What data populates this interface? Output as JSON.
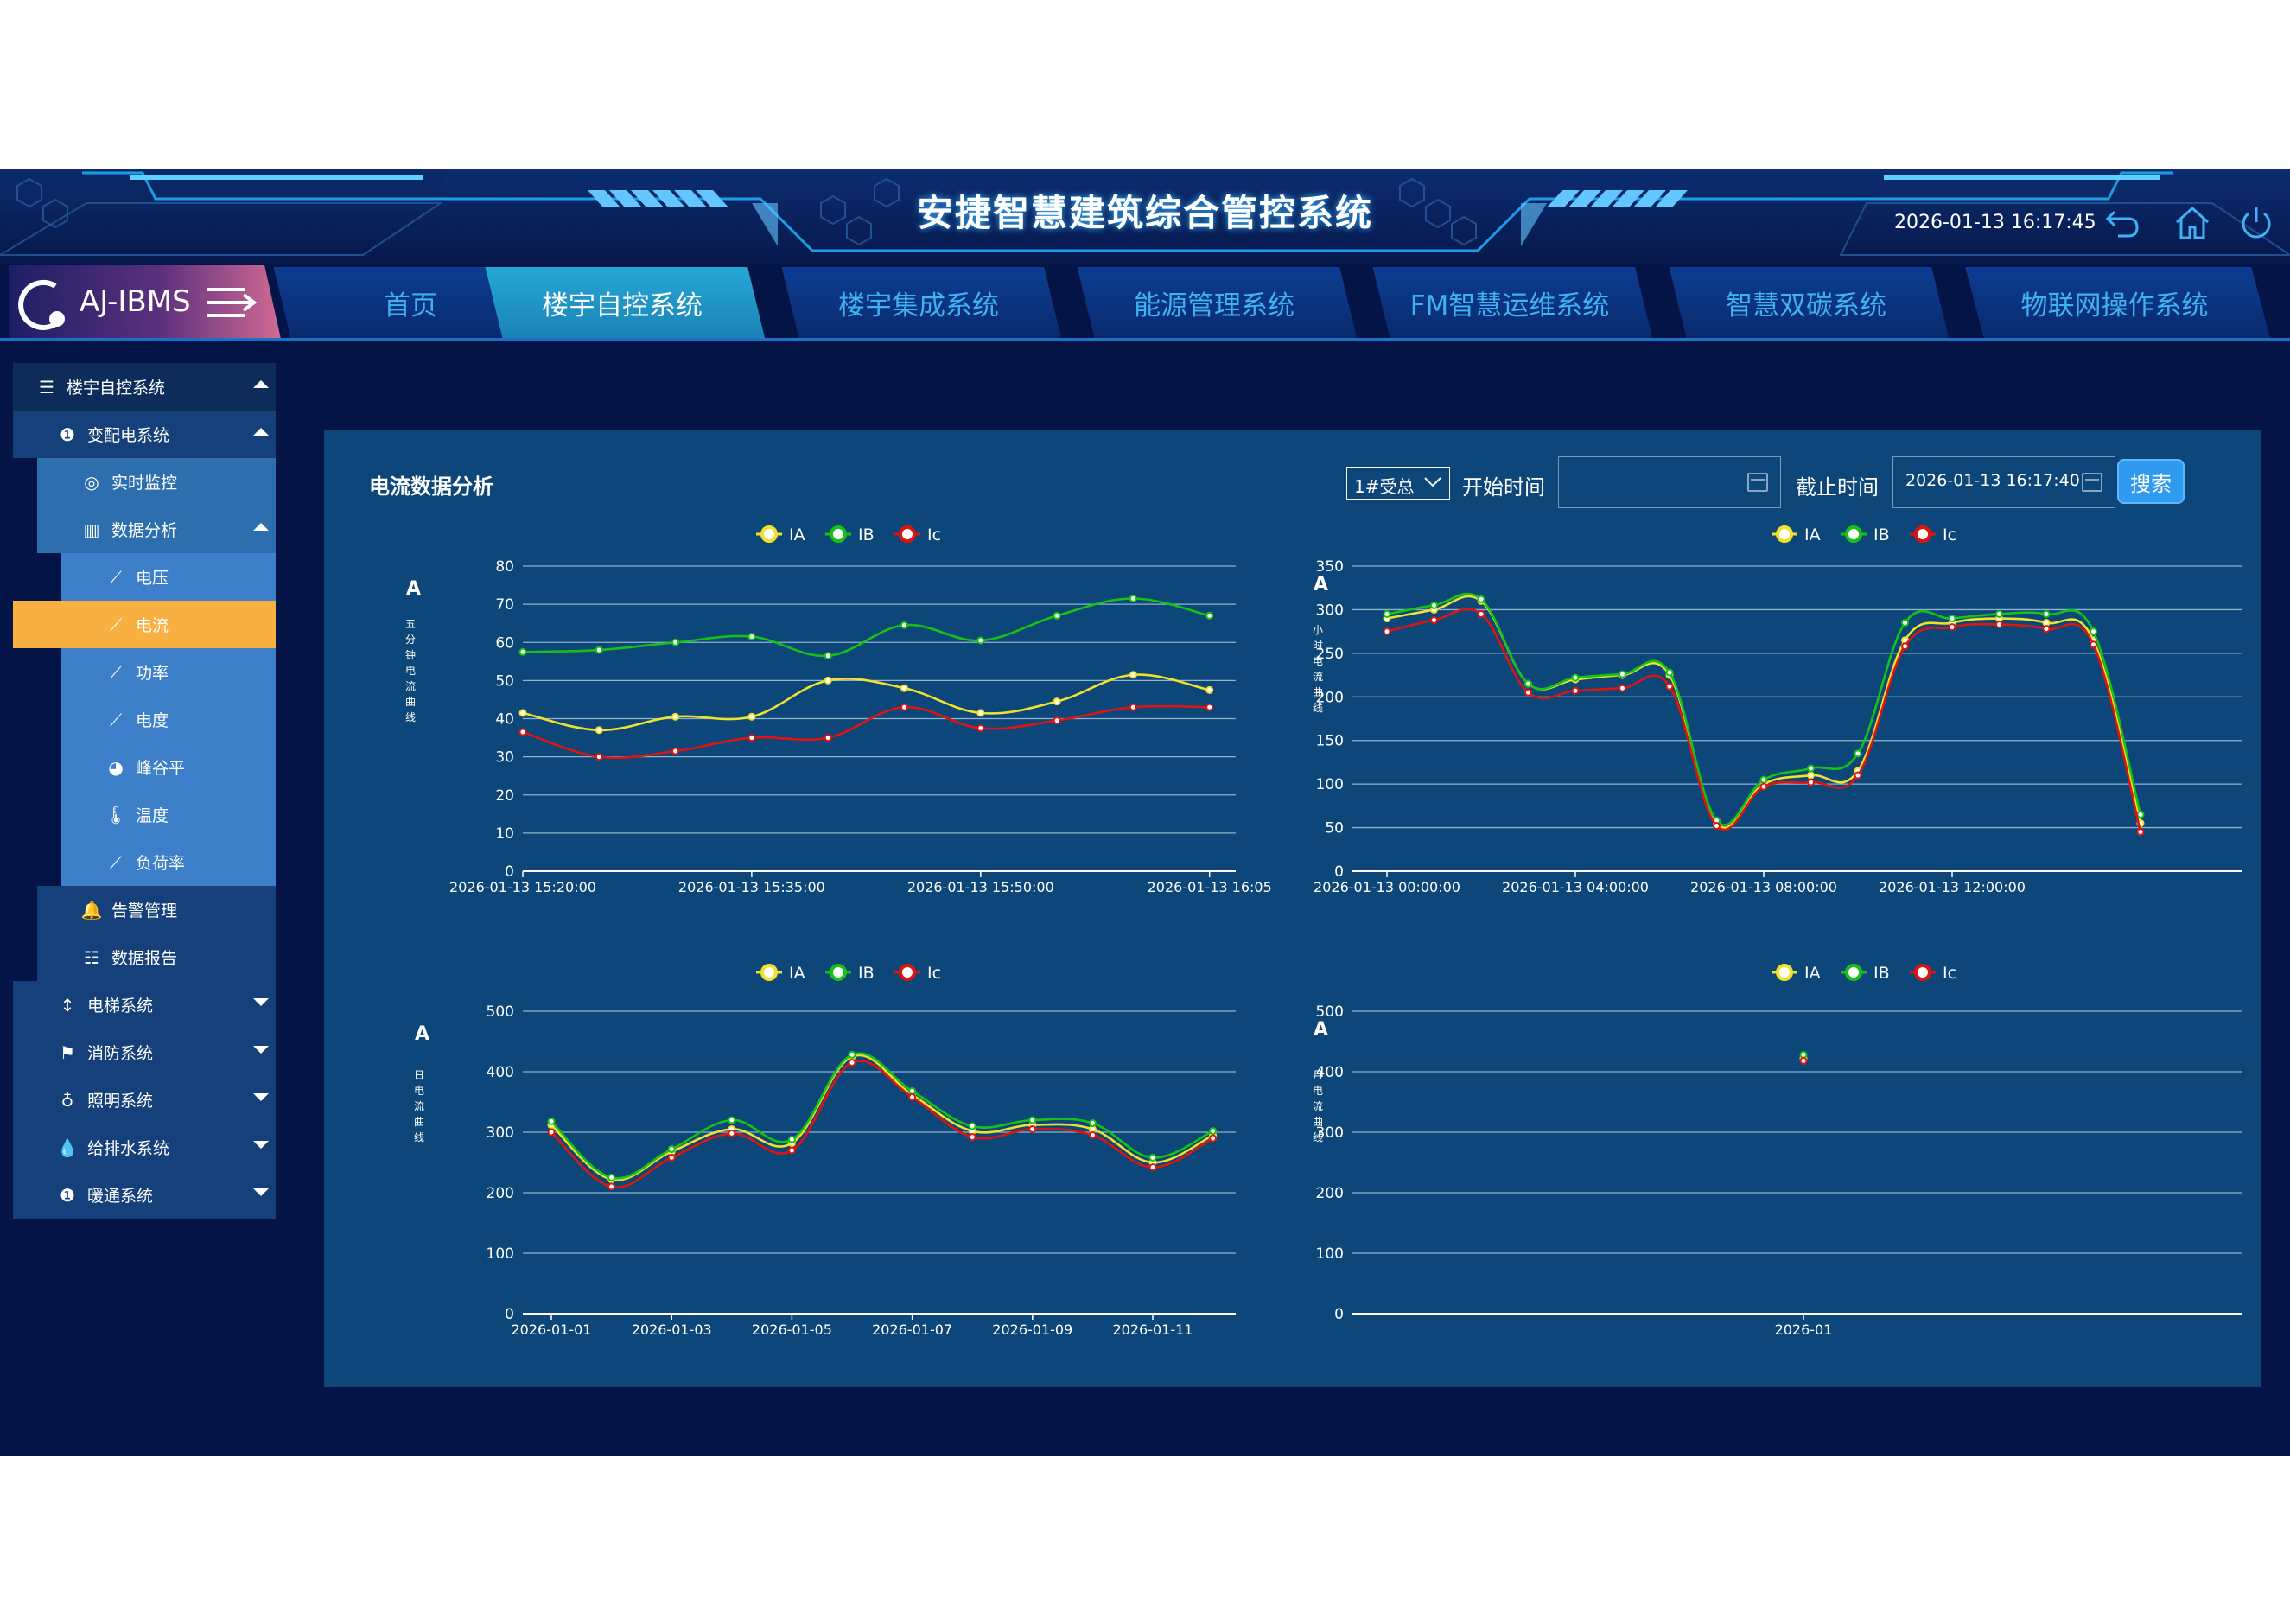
{
  "header": {
    "title": "安捷智慧建筑综合管控系统",
    "datetime": "2026-01-13 16:17:45"
  },
  "nav": {
    "brand": "AJ-IBMS",
    "tabs": [
      "首页",
      "楼宇自控系统",
      "楼宇集成系统",
      "能源管理系统",
      "FM智慧运维系统",
      "智慧双碳系统",
      "物联网操作系统"
    ],
    "active": "楼宇自控系统"
  },
  "sidebar": {
    "root": "楼宇自控系统",
    "power": "变配电系统",
    "realtime": "实时监控",
    "analysis": "数据分析",
    "analysis_items": [
      "电压",
      "电流",
      "功率",
      "电度",
      "峰谷平",
      "温度",
      "负荷率"
    ],
    "active_item": "电流",
    "alarm": "告警管理",
    "report": "数据报告",
    "systems": [
      "电梯系统",
      "消防系统",
      "照明系统",
      "给排水系统",
      "暖通系统"
    ]
  },
  "panel": {
    "title": "电流数据分析",
    "selector": "1#受总",
    "start_label": "开始时间",
    "start_value": "",
    "end_label": "截止时间",
    "end_value": "2026-01-13 16:17:40",
    "search": "搜索"
  },
  "colors": {
    "IA": "#f0e12c",
    "IB": "#15c215",
    "Ic": "#e0140f",
    "grid": "#8fb3cf"
  },
  "chart_data": [
    {
      "type": "line",
      "unit": "A",
      "ylabel": "五分钟电流曲线",
      "ylim": [
        0,
        80
      ],
      "yticks": [
        0,
        10,
        20,
        30,
        40,
        50,
        60,
        70,
        80
      ],
      "x": [
        "15:20",
        "15:25",
        "15:30",
        "15:35",
        "15:40",
        "15:45",
        "15:50",
        "15:55",
        "16:00",
        "16:05"
      ],
      "xtick_labels": [
        "2026-01-13 15:20:00",
        "2026-01-13 15:35:00",
        "2026-01-13 15:50:00",
        "2026-01-13 16:05"
      ],
      "xtick_index": [
        0,
        3,
        6,
        9
      ],
      "series": [
        {
          "name": "IA",
          "values": [
            41.5,
            37,
            40.5,
            40.5,
            50,
            48,
            41.5,
            44.5,
            51.5,
            47.5
          ]
        },
        {
          "name": "IB",
          "values": [
            57.5,
            58,
            60,
            61.5,
            56.5,
            64.5,
            60.5,
            67,
            71.5,
            67
          ]
        },
        {
          "name": "Ic",
          "values": [
            36.5,
            30,
            31.5,
            35,
            35,
            43,
            37.5,
            39.5,
            43,
            43
          ]
        }
      ]
    },
    {
      "type": "line",
      "unit": "A",
      "ylabel": "小时电流曲线",
      "ylim": [
        0,
        350
      ],
      "yticks": [
        0,
        50,
        100,
        150,
        200,
        250,
        300,
        350
      ],
      "x": [
        "00:00",
        "01:00",
        "02:00",
        "03:00",
        "04:00",
        "05:00",
        "06:00",
        "07:00",
        "08:00",
        "09:00",
        "10:00",
        "11:00",
        "12:00",
        "13:00",
        "14:00",
        "15:00",
        "16:00"
      ],
      "xtick_labels": [
        "2026-01-13 00:00:00",
        "2026-01-13 04:00:00",
        "2026-01-13 08:00:00",
        "2026-01-13 12:00:00"
      ],
      "xtick_index": [
        0,
        4,
        8,
        12
      ],
      "series": [
        {
          "name": "IA",
          "values": [
            290,
            300,
            310,
            215,
            220,
            225,
            225,
            55,
            100,
            110,
            115,
            265,
            285,
            290,
            285,
            265,
            55
          ]
        },
        {
          "name": "IB",
          "values": [
            295,
            305,
            312,
            215,
            222,
            226,
            228,
            58,
            105,
            118,
            135,
            285,
            290,
            295,
            295,
            275,
            65
          ]
        },
        {
          "name": "Ic",
          "values": [
            275,
            288,
            295,
            205,
            207,
            210,
            212,
            52,
            97,
            102,
            110,
            258,
            280,
            283,
            278,
            260,
            45
          ]
        }
      ]
    },
    {
      "type": "line",
      "unit": "A",
      "ylabel": "日电流曲线",
      "ylim": [
        0,
        500
      ],
      "yticks": [
        0,
        100,
        200,
        300,
        400,
        500
      ],
      "x": [
        "2026-01-01",
        "2026-01-02",
        "2026-01-03",
        "2026-01-04",
        "2026-01-05",
        "2026-01-06",
        "2026-01-07",
        "2026-01-08",
        "2026-01-09",
        "2026-01-10",
        "2026-01-11",
        "2026-01-12"
      ],
      "xtick_labels": [
        "2026-01-01",
        "2026-01-03",
        "2026-01-05",
        "2026-01-07",
        "2026-01-09",
        "2026-01-11"
      ],
      "xtick_index": [
        0,
        2,
        4,
        6,
        8,
        10
      ],
      "series": [
        {
          "name": "IA",
          "values": [
            312,
            222,
            268,
            305,
            282,
            425,
            362,
            302,
            312,
            305,
            250,
            295
          ]
        },
        {
          "name": "IB",
          "values": [
            318,
            225,
            272,
            320,
            288,
            428,
            368,
            310,
            320,
            315,
            258,
            302
          ]
        },
        {
          "name": "Ic",
          "values": [
            300,
            210,
            258,
            298,
            270,
            415,
            358,
            292,
            305,
            295,
            242,
            290
          ]
        }
      ]
    },
    {
      "type": "scatter",
      "unit": "A",
      "ylabel": "月电流曲线",
      "ylim": [
        0,
        500
      ],
      "yticks": [
        0,
        100,
        200,
        300,
        400,
        500
      ],
      "x": [
        "2026-01"
      ],
      "xtick_labels": [
        "2026-01"
      ],
      "xtick_index": [
        0
      ],
      "series": [
        {
          "name": "IA",
          "values": [
            422
          ]
        },
        {
          "name": "IB",
          "values": [
            428
          ]
        },
        {
          "name": "Ic",
          "values": [
            418
          ]
        }
      ]
    }
  ]
}
